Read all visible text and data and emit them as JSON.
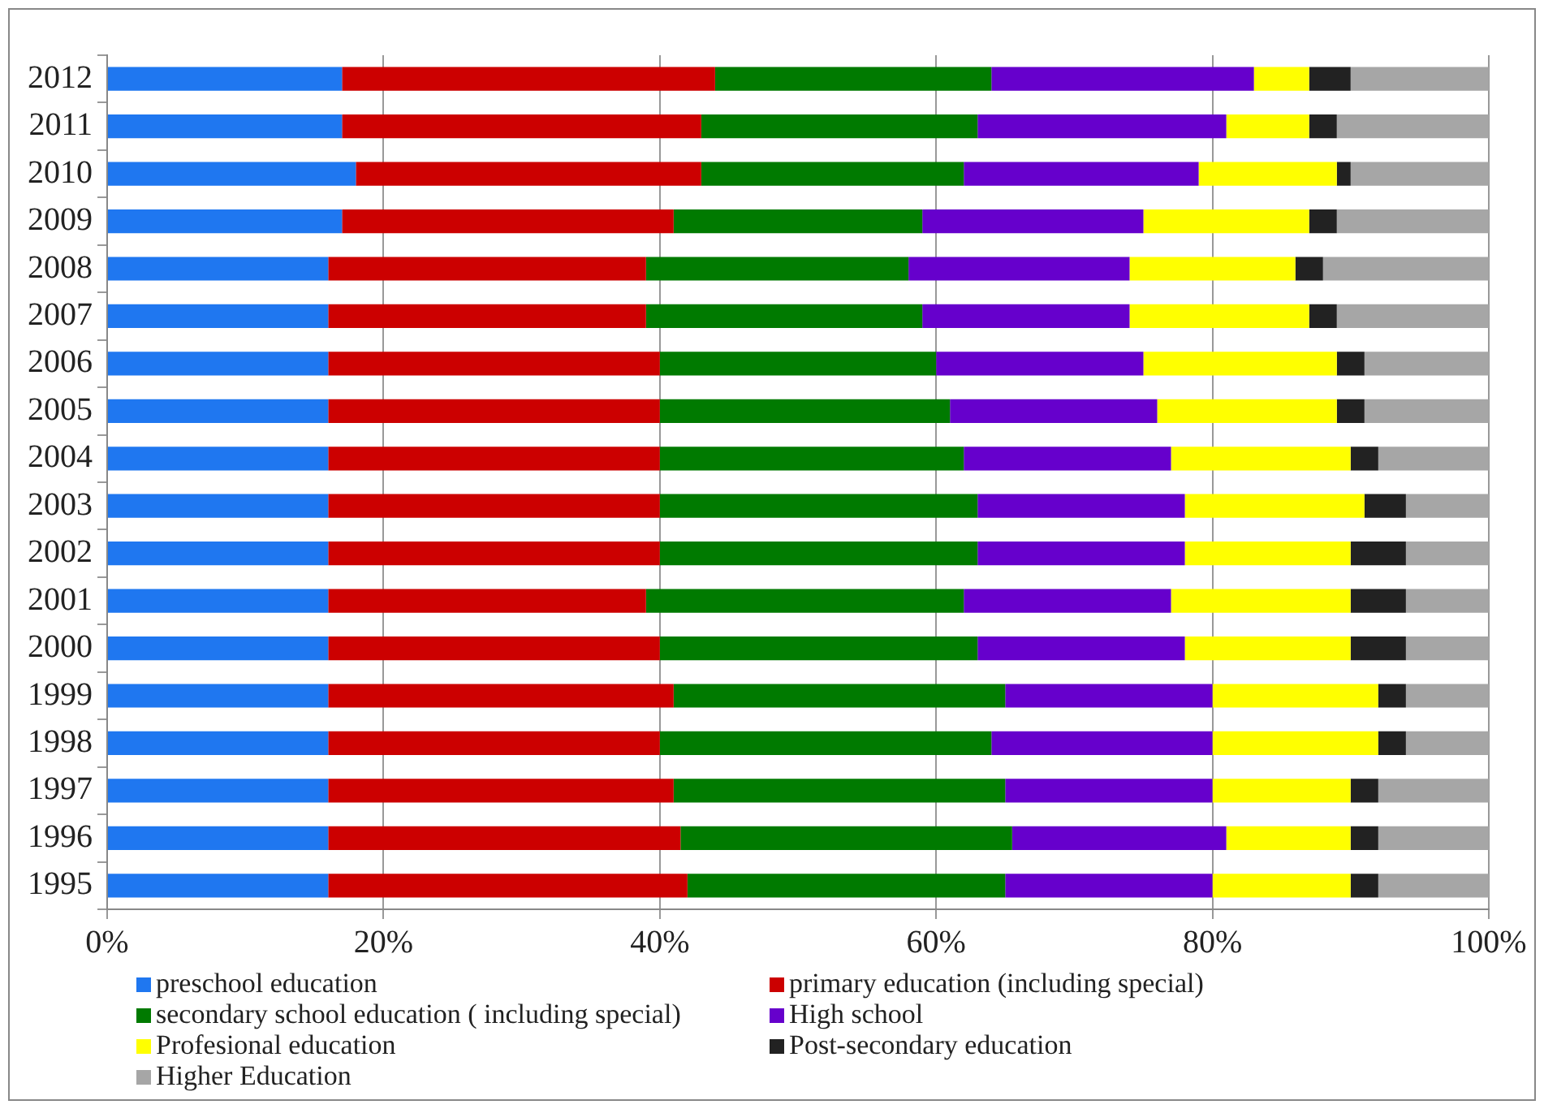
{
  "chart_data": {
    "type": "bar",
    "orientation": "horizontal",
    "stacked": true,
    "categories": [
      "2012",
      "2011",
      "2010",
      "2009",
      "2008",
      "2007",
      "2006",
      "2005",
      "2004",
      "2003",
      "2002",
      "2001",
      "2000",
      "1999",
      "1998",
      "1997",
      "1996",
      "1995"
    ],
    "series": [
      {
        "name": "preschool education",
        "color": "#1f77f0",
        "values": [
          17,
          17,
          18,
          17,
          16,
          16,
          16,
          16,
          16,
          16,
          16,
          16,
          16,
          16,
          16,
          16,
          16,
          16
        ]
      },
      {
        "name": "primary education (including special)",
        "color": "#cc0000",
        "values": [
          27,
          26,
          25,
          24,
          23,
          23,
          24,
          24,
          24,
          24,
          24,
          23,
          24,
          25,
          24,
          25,
          25.5,
          26
        ]
      },
      {
        "name": "secondary school education ( including special)",
        "color": "#007a00",
        "values": [
          20,
          20,
          19,
          18,
          19,
          20,
          20,
          21,
          22,
          23,
          23,
          23,
          23,
          24,
          24,
          24,
          24,
          23
        ]
      },
      {
        "name": "High school",
        "color": "#6600cc",
        "values": [
          19,
          18,
          17,
          16,
          16,
          15,
          15,
          15,
          15,
          15,
          15,
          15,
          15,
          15,
          16,
          15,
          15.5,
          15
        ]
      },
      {
        "name": "Profesional education",
        "color": "#ffff00",
        "values": [
          4,
          6,
          10,
          12,
          12,
          13,
          14,
          13,
          13,
          13,
          12,
          13,
          12,
          12,
          12,
          10,
          9,
          10
        ]
      },
      {
        "name": "Post-secondary education",
        "color": "#222222",
        "values": [
          3,
          2,
          1,
          2,
          2,
          2,
          2,
          2,
          2,
          3,
          4,
          4,
          4,
          2,
          2,
          2,
          2,
          2
        ]
      },
      {
        "name": "Higher Education",
        "color": "#a6a6a6",
        "values": [
          10,
          11,
          10,
          11,
          12,
          11,
          9,
          9,
          8,
          6,
          6,
          6,
          6,
          6,
          6,
          8,
          8,
          8
        ]
      }
    ],
    "xlim": [
      0,
      100
    ],
    "xticks": [
      {
        "value": 0,
        "label": "0%"
      },
      {
        "value": 20,
        "label": "20%"
      },
      {
        "value": 40,
        "label": "40%"
      },
      {
        "value": 60,
        "label": "60%"
      },
      {
        "value": 80,
        "label": "80%"
      },
      {
        "value": 100,
        "label": "100%"
      }
    ],
    "grid": "x",
    "legend": "bottom"
  }
}
